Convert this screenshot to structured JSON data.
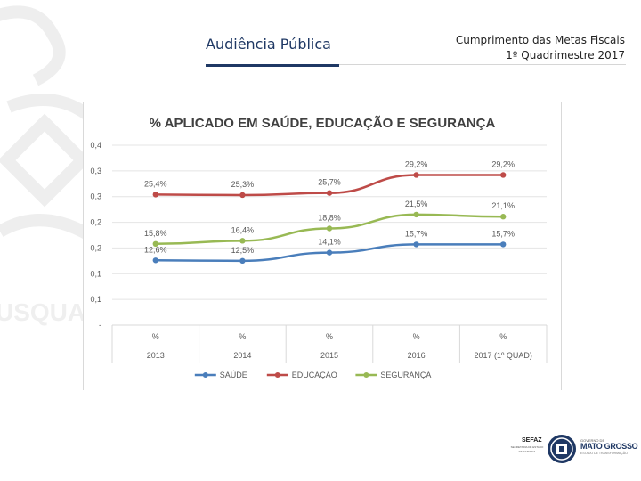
{
  "header": {
    "title": "Audiência Pública",
    "right_line1": "Cumprimento das Metas Fiscais",
    "right_line2": "1º Quadrimestre 2017"
  },
  "watermark": {
    "text": "USQUAN"
  },
  "chart_data": {
    "type": "line",
    "title": "% APLICADO EM SAÚDE, EDUCAÇÃO E SEGURANÇA",
    "categories": [
      "2013",
      "2014",
      "2015",
      "2016",
      "2017 (1º QUAD)"
    ],
    "category_unit_labels": [
      "%",
      "%",
      "%",
      "%",
      "%"
    ],
    "yticks": [
      "-",
      "0,1",
      "0,1",
      "0,2",
      "0,2",
      "0,3",
      "0,3",
      "0,4"
    ],
    "ylim": [
      0,
      0.35
    ],
    "series": [
      {
        "name": "SAÚDE",
        "color": "#4a7ebb",
        "values": [
          0.126,
          0.125,
          0.141,
          0.157,
          0.157
        ],
        "labels": [
          "12,6%",
          "12,5%",
          "14,1%",
          "15,7%",
          "15,7%"
        ]
      },
      {
        "name": "EDUCAÇÃO",
        "color": "#be4b48",
        "values": [
          0.254,
          0.253,
          0.257,
          0.292,
          0.292
        ],
        "labels": [
          "25,4%",
          "25,3%",
          "25,7%",
          "29,2%",
          "29,2%"
        ]
      },
      {
        "name": "SEGURANÇA",
        "color": "#98b954",
        "values": [
          0.158,
          0.164,
          0.188,
          0.215,
          0.211
        ],
        "labels": [
          "15,8%",
          "16,4%",
          "18,8%",
          "21,5%",
          "21,1%"
        ]
      }
    ],
    "legend_position": "bottom"
  },
  "footer": {
    "sefaz": "SEFAZ",
    "sefaz_sub": "SECRETARIA DE ESTADO DE FAZENDA",
    "gov_small": "GOVERNO DE",
    "gov_big": "MATO GROSSO",
    "gov_sub": "ESTADO DE TRANSFORMAÇÃO"
  },
  "colors": {
    "brand": "#1f3864",
    "grid": "#d9d9d9"
  }
}
